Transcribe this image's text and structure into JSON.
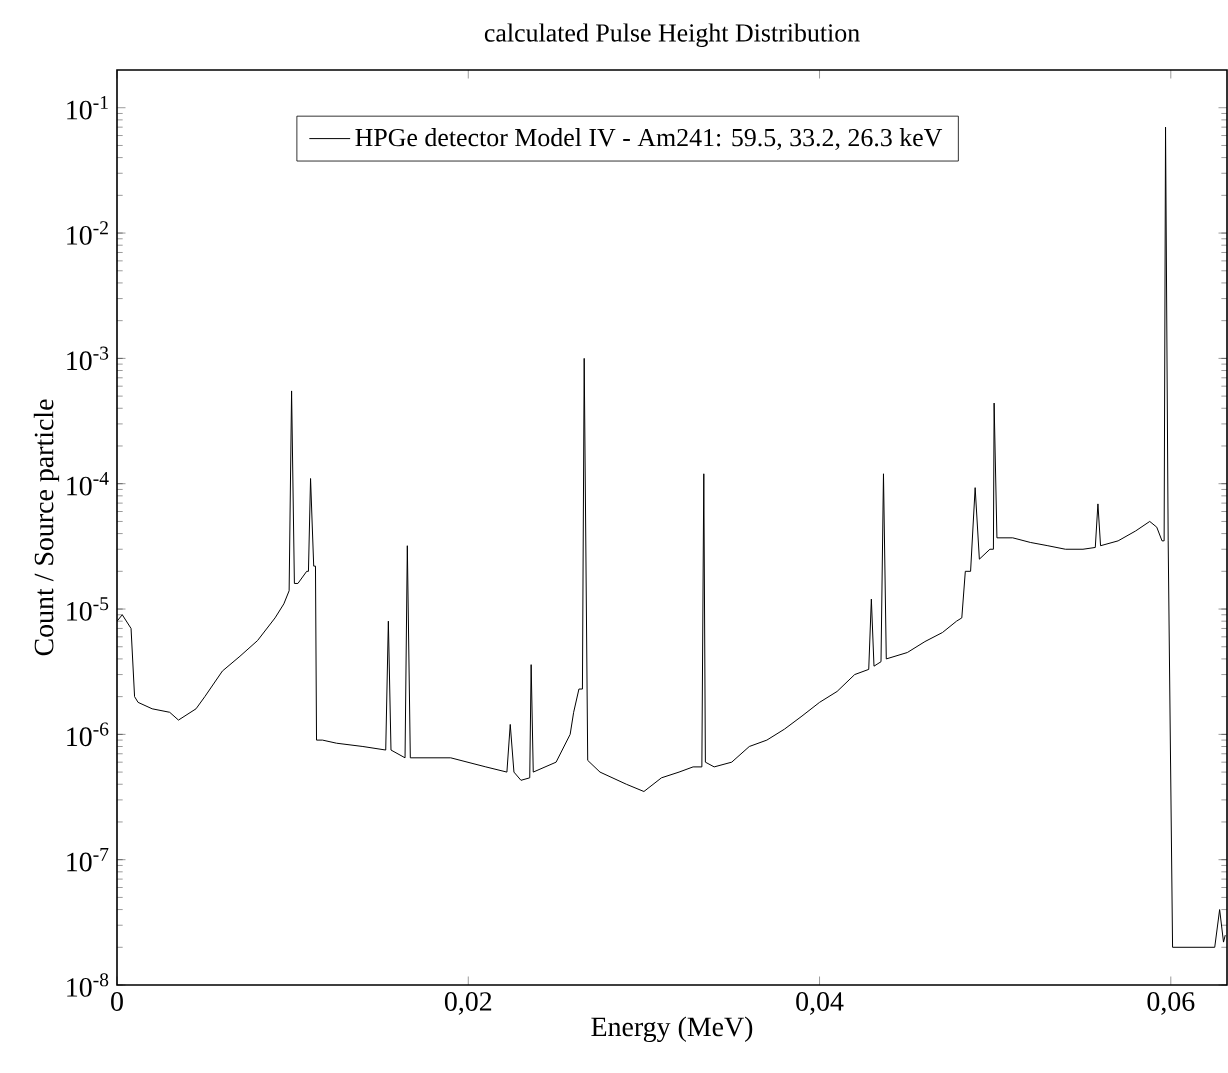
{
  "chart_data": {
    "type": "line",
    "title": "calculated Pulse Height Distribution",
    "xlabel": "Energy (MeV)",
    "ylabel": "Count / Source particle",
    "xlim": [
      0,
      0.0632
    ],
    "ylim": [
      1e-08,
      0.2
    ],
    "log": "y",
    "grid": false,
    "legend": "top",
    "marker": "none",
    "line_style": "solid",
    "xticks": [
      0,
      {
        "value": 0.02,
        "label": "0,02"
      },
      {
        "value": 0.04,
        "label": "0,04"
      },
      {
        "value": 0.06,
        "label": "0,06"
      }
    ],
    "yticks": [
      {
        "value": 1e-08,
        "label": "10$^{-8}$"
      },
      {
        "value": 1e-07,
        "label": "10$^{-7}$"
      },
      {
        "value": 1e-06,
        "label": "10$^{-6}$"
      },
      {
        "value": 1e-05,
        "label": "10$^{-5}$"
      },
      {
        "value": 0.0001,
        "label": "10$^{-4}$"
      },
      {
        "value": 0.001,
        "label": "10$^{-3}$"
      },
      {
        "value": 0.01,
        "label": "10$^{-2}$"
      },
      {
        "value": 0.1,
        "label": "10$^{-1}$"
      }
    ],
    "series": [
      {
        "name": "HPGe detector Model IV - Am241: 59.5, 33.2, 26.3 keV",
        "color": "#000000",
        "x": [
          0,
          0.0003,
          0.0008,
          0.001,
          0.0012,
          0.002,
          0.003,
          0.0035,
          0.0045,
          0.005,
          0.006,
          0.007,
          0.008,
          0.009,
          0.0095,
          0.0098,
          0.00994,
          0.0101,
          0.0103,
          0.0108,
          0.0109,
          0.01102,
          0.0112,
          0.0113,
          0.01136,
          0.0117,
          0.0125,
          0.014,
          0.0153,
          0.01545,
          0.0156,
          0.0164,
          0.01653,
          0.0167,
          0.019,
          0.021,
          0.0222,
          0.02239,
          0.0226,
          0.023,
          0.0235,
          0.02358,
          0.0237,
          0.025,
          0.0258,
          0.026,
          0.0263,
          0.0265,
          0.0266,
          0.0268,
          0.0275,
          0.029,
          0.03,
          0.031,
          0.032,
          0.0328,
          0.0333,
          0.03341,
          0.0335,
          0.034,
          0.035,
          0.036,
          0.037,
          0.038,
          0.039,
          0.04,
          0.041,
          0.042,
          0.0428,
          0.04295,
          0.0431,
          0.0435,
          0.04364,
          0.0438,
          0.045,
          0.046,
          0.047,
          0.0478,
          0.0481,
          0.0483,
          0.0486,
          0.04886,
          0.0491,
          0.0497,
          0.0499,
          0.04994,
          0.0501,
          0.051,
          0.052,
          0.053,
          0.054,
          0.055,
          0.0557,
          0.05585,
          0.056,
          0.057,
          0.058,
          0.0588,
          0.0592,
          0.0595,
          0.05962,
          0.0597,
          0.05985,
          0.0601,
          0.0603,
          0.0625,
          0.06278,
          0.063,
          0.0631
        ],
        "values": [
          8e-06,
          9e-06,
          7e-06,
          2e-06,
          1.8e-06,
          1.6e-06,
          1.5e-06,
          1.3e-06,
          1.6e-06,
          2e-06,
          3.2e-06,
          4.2e-06,
          5.6e-06,
          8.5e-06,
          1.1e-05,
          1.4e-05,
          0.00055,
          1.6e-05,
          1.6e-05,
          2e-05,
          2e-05,
          0.00011,
          2.2e-05,
          2.2e-05,
          9e-07,
          9e-07,
          8.5e-07,
          8e-07,
          7.5e-07,
          8e-06,
          7.5e-07,
          6.5e-07,
          3.2e-05,
          6.5e-07,
          6.5e-07,
          5.5e-07,
          5e-07,
          1.2e-06,
          5e-07,
          4.3e-07,
          4.5e-07,
          3.6e-06,
          5e-07,
          6e-07,
          1e-06,
          1.5e-06,
          2.3e-06,
          2.3e-06,
          0.001,
          6.2e-07,
          5e-07,
          4e-07,
          3.5e-07,
          4.5e-07,
          5e-07,
          5.5e-07,
          5.5e-07,
          0.00012,
          6e-07,
          5.5e-07,
          6e-07,
          8e-07,
          9e-07,
          1.1e-06,
          1.4e-06,
          1.8e-06,
          2.2e-06,
          3e-06,
          3.3e-06,
          1.2e-05,
          3.5e-06,
          3.8e-06,
          0.00012,
          4e-06,
          4.5e-06,
          5.5e-06,
          6.5e-06,
          8e-06,
          8.5e-06,
          2e-05,
          2e-05,
          9.3e-05,
          2.5e-05,
          3e-05,
          3e-05,
          0.00044,
          3.7e-05,
          3.7e-05,
          3.4e-05,
          3.2e-05,
          3e-05,
          3e-05,
          3.1e-05,
          6.9e-05,
          3.2e-05,
          3.5e-05,
          4.2e-05,
          5e-05,
          4.5e-05,
          3.5e-05,
          3.5e-05,
          0.07,
          3.5e-05,
          2e-08,
          2e-08,
          2e-08,
          4e-08,
          2.2e-08,
          2.5e-08
        ]
      }
    ]
  }
}
